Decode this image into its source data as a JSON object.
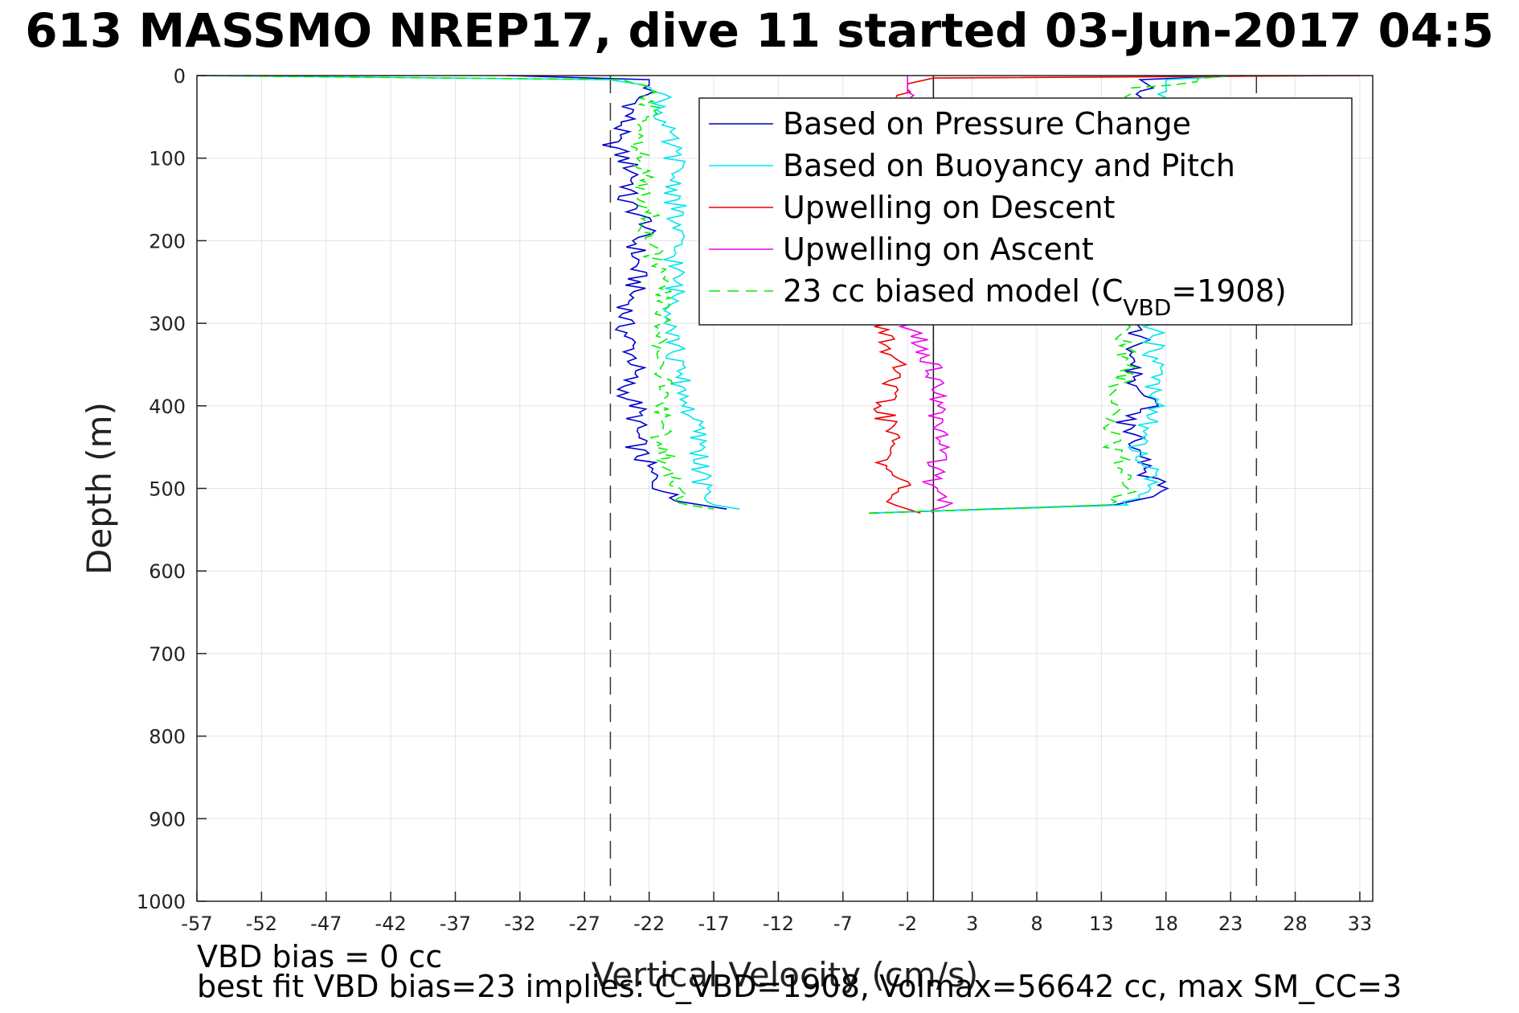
{
  "title": "613 MASSMO NREP17, dive 11 started 03-Jun-2017 04:5",
  "footer": {
    "line1": "VBD bias = 0 cc",
    "line2": "best fit VBD bias=23 implies: C_VBD=1908, Volmax=56642 cc, max SM_CC=3"
  },
  "chart_data": {
    "type": "line",
    "title": "613 MASSMO NREP17, dive 11 started 03-Jun-2017 04:5",
    "xlabel": "Vertical Velocity (cm/s)",
    "ylabel": "Depth (m)",
    "xlim": [
      -57,
      34
    ],
    "ylim": [
      0,
      1000
    ],
    "y_reversed": true,
    "xticks": [
      -57,
      -52,
      -47,
      -42,
      -37,
      -32,
      -27,
      -22,
      -17,
      -12,
      -7,
      -2,
      3,
      8,
      13,
      18,
      23,
      28,
      33
    ],
    "yticks": [
      0,
      100,
      200,
      300,
      400,
      500,
      600,
      700,
      800,
      900,
      1000
    ],
    "grid": true,
    "legend_position": "top-right",
    "reference_lines": {
      "zero_solid_x": 0,
      "dashed_x": [
        -25,
        25
      ]
    },
    "series": [
      {
        "name": "Based on Pressure Change",
        "color": "#0000cc",
        "style": "solid",
        "descent": {
          "depth": [
            0,
            5,
            15,
            30,
            60,
            80,
            100,
            120,
            150,
            180,
            200,
            250,
            300,
            350,
            380,
            400,
            450,
            480,
            500,
            515,
            525
          ],
          "velocity": [
            -33,
            -22,
            -22,
            -23,
            -24,
            -25,
            -24,
            -23,
            -24,
            -22,
            -23,
            -23,
            -24,
            -23,
            -24,
            -23,
            -23,
            -22,
            -21,
            -20,
            -16
          ]
        },
        "ascent": {
          "depth": [
            530,
            520,
            510,
            500,
            480,
            450,
            420,
            400,
            380,
            350,
            320,
            300,
            30,
            15,
            5,
            0
          ],
          "velocity": [
            -5,
            14,
            17,
            18,
            16,
            16,
            15,
            17,
            16,
            15,
            16,
            15,
            16,
            17,
            16,
            24
          ]
        }
      },
      {
        "name": "Based on Buoyancy and Pitch",
        "color": "#00e5ee",
        "style": "solid",
        "descent": {
          "depth": [
            0,
            5,
            15,
            30,
            60,
            100,
            150,
            200,
            250,
            300,
            350,
            400,
            450,
            500,
            520,
            525
          ],
          "velocity": [
            -57,
            -25,
            -21,
            -21,
            -21,
            -20,
            -20,
            -20,
            -20,
            -20,
            -20,
            -19,
            -18,
            -18,
            -17,
            -15
          ]
        },
        "ascent": {
          "depth": [
            530,
            520,
            500,
            450,
            400,
            350,
            300,
            30,
            15,
            5,
            0
          ],
          "velocity": [
            -5,
            15,
            17,
            16,
            17,
            17,
            17,
            17,
            18,
            18,
            24
          ]
        }
      },
      {
        "name": "Upwelling on Descent",
        "color": "#ee0000",
        "style": "solid",
        "descent": {
          "depth": [
            0,
            3,
            10,
            20,
            300,
            350,
            400,
            450,
            480,
            500,
            520,
            530
          ],
          "velocity": [
            33,
            0,
            -2,
            -2,
            -4,
            -3,
            -4,
            -3,
            -4,
            -2,
            -3,
            -1
          ]
        }
      },
      {
        "name": "Upwelling on Ascent",
        "color": "#ee00ee",
        "style": "solid",
        "ascent": {
          "depth": [
            530,
            510,
            500,
            480,
            450,
            420,
            400,
            380,
            350,
            320,
            300,
            20,
            10,
            0
          ],
          "velocity": [
            0,
            1,
            0,
            0,
            1,
            0,
            1,
            0,
            0,
            -1,
            -2,
            -2,
            -2,
            -2
          ]
        }
      },
      {
        "name": "23 cc biased model (C_VBD=1908)",
        "color": "#00ee00",
        "style": "dashed",
        "descent": {
          "depth": [
            0,
            5,
            20,
            50,
            100,
            150,
            200,
            250,
            300,
            350,
            400,
            450,
            500,
            520,
            525
          ],
          "velocity": [
            -57,
            -24,
            -22,
            -22,
            -23,
            -22,
            -22,
            -21,
            -21,
            -21,
            -21,
            -21,
            -20,
            -19,
            -17
          ]
        },
        "ascent": {
          "depth": [
            530,
            520,
            500,
            450,
            400,
            350,
            300,
            30,
            15,
            0
          ],
          "velocity": [
            -5,
            14,
            15,
            14,
            14,
            15,
            15,
            15,
            16,
            23
          ]
        }
      }
    ]
  }
}
